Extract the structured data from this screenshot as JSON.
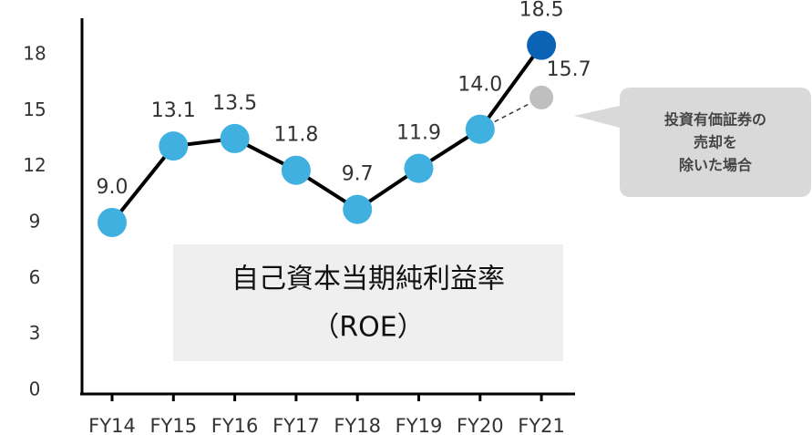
{
  "chart_data": {
    "type": "line",
    "title": "自己資本当期純利益率",
    "subtitle": "（ROE）",
    "categories": [
      "FY14",
      "FY15",
      "FY16",
      "FY17",
      "FY18",
      "FY19",
      "FY20",
      "FY21"
    ],
    "series": [
      {
        "color": "#3fb0e0",
        "last_point_color": "#0b63b6",
        "line_color": "#000000",
        "values": [
          9,
          13.1,
          13.5,
          11.8,
          9.7,
          11.9,
          14,
          18.5
        ],
        "value_labels": [
          "9.0",
          "13.1",
          "13.5",
          "11.8",
          "9.7",
          "11.9",
          "14.0",
          "18.5"
        ]
      },
      {
        "name": [
          "投資有価証券の",
          "売却を",
          "除いた場合"
        ],
        "color": "#bfbfbf",
        "line_style": "dashed",
        "values": [
          null,
          null,
          null,
          null,
          null,
          null,
          null,
          15.7
        ],
        "value_labels": [
          null,
          null,
          null,
          null,
          null,
          null,
          null,
          "15.7"
        ]
      }
    ],
    "ylim": [
      0,
      20
    ],
    "yticks": [
      0,
      3,
      6,
      9,
      12,
      15,
      18
    ]
  }
}
